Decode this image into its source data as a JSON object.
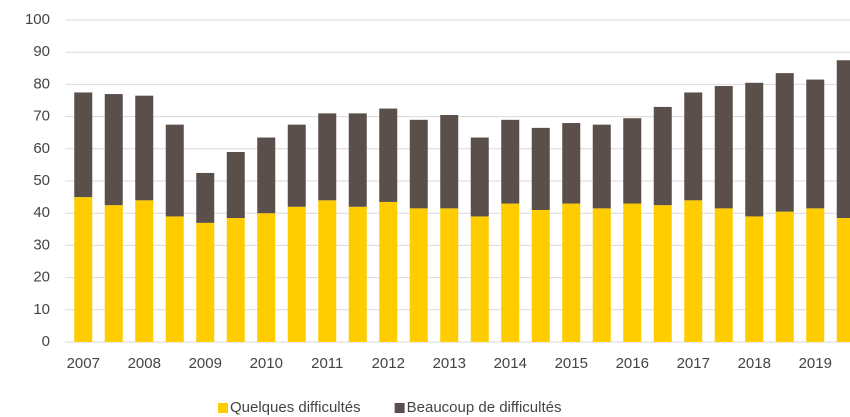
{
  "chart_data": {
    "type": "stacked_bar",
    "categories": [
      "2007",
      null,
      "2008",
      null,
      "2009",
      null,
      "2010",
      null,
      "2011",
      null,
      "2012",
      null,
      "2013",
      null,
      "2014",
      null,
      "2015",
      null,
      "2016",
      null,
      "2017",
      null,
      "2018",
      null,
      "2019",
      null
    ],
    "series": [
      {
        "name": "Quelques difficultés",
        "color": "#FFCC00",
        "values": [
          45,
          42.5,
          44,
          39,
          37,
          38.5,
          40,
          42,
          44,
          42,
          43.5,
          41.5,
          41.5,
          39,
          43,
          41,
          43,
          41.5,
          43,
          42.5,
          44,
          41.5,
          39,
          40.5,
          41.5,
          38.5
        ]
      },
      {
        "name": "Beaucoup de difficultés",
        "color": "#5B4F4B",
        "values": [
          32.5,
          34.5,
          32.5,
          28.5,
          15.5,
          20.5,
          23.5,
          25.5,
          27,
          29,
          29,
          27.5,
          29,
          24.5,
          26,
          25.5,
          25,
          26,
          26.5,
          30.5,
          33.5,
          38,
          41.5,
          43,
          40,
          49
        ]
      }
    ],
    "ylim": [
      0,
      100
    ],
    "yticks": [
      0,
      10,
      20,
      30,
      40,
      50,
      60,
      70,
      80,
      90,
      100
    ],
    "grid": true,
    "legend": "bottom"
  }
}
